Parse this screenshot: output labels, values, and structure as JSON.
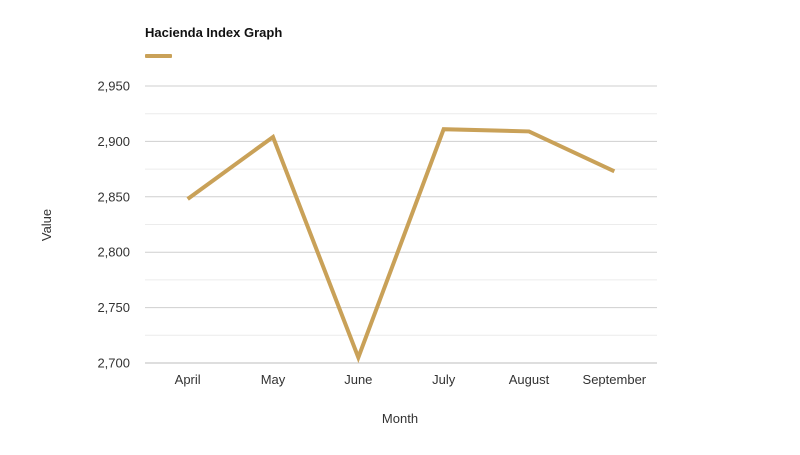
{
  "chart_data": {
    "type": "line",
    "title": "Hacienda Index Graph",
    "xlabel": "Month",
    "ylabel": "Value",
    "categories": [
      "April",
      "May",
      "June",
      "July",
      "August",
      "September"
    ],
    "series": [
      {
        "name": "Hacienda Index Graph",
        "color": "#C9A158",
        "values": [
          2848,
          2904,
          2705,
          2911,
          2909,
          2873
        ]
      }
    ],
    "ylim": [
      2700,
      2950
    ],
    "yticks": [
      2700,
      2750,
      2800,
      2850,
      2900,
      2950
    ],
    "ytick_labels": [
      "2,700",
      "2,750",
      "2,800",
      "2,850",
      "2,900",
      "2,950"
    ],
    "grid": true,
    "legend": "top-left"
  }
}
